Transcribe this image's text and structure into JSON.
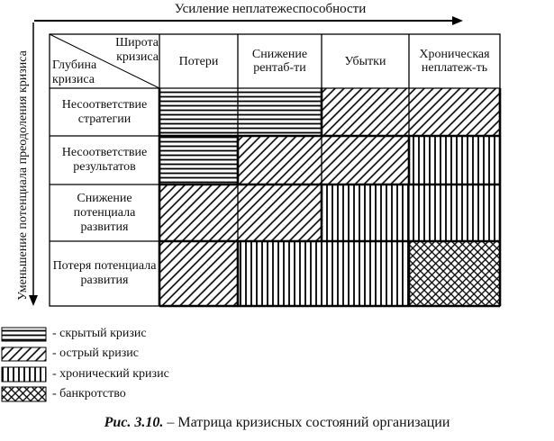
{
  "axes": {
    "top_label": "Усиление неплатежеспособности",
    "left_label": "Уменьшение потенциала преодоления кризиса"
  },
  "corner": {
    "top_text": "Широта кризиса",
    "bottom_text": "Глубина кризиса"
  },
  "columns": [
    "Потери",
    "Снижение рентаб-ти",
    "Убытки",
    "Хроническая неплатеж-ть"
  ],
  "rows": [
    "Несоответствие стратегии",
    "Несоответствие результатов",
    "Снижение потенциала развития",
    "Потеря потенциала развития"
  ],
  "legend": [
    {
      "pattern": "horizontal",
      "label": "- скрытый кризис"
    },
    {
      "pattern": "diagonal",
      "label": "- острый кризис"
    },
    {
      "pattern": "vertical",
      "label": "- хронический кризис"
    },
    {
      "pattern": "crosshatch",
      "label": "- банкротство"
    }
  ],
  "caption": {
    "figure_number": "Рис. 3.10.",
    "text": " – Матрица кризисных состояний организации"
  }
}
